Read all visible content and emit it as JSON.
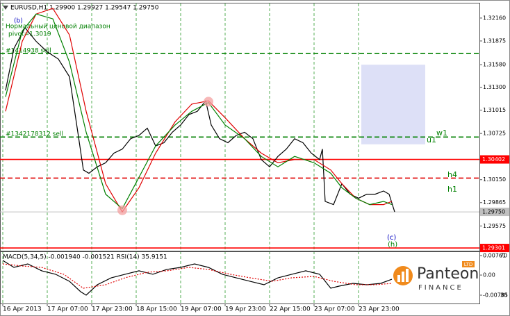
{
  "chart_data": [
    {
      "type": "line",
      "title": "EURUSD,H1  1.29900 1.29927 1.29547 1.29750",
      "xlim": [
        -1,
        171.5
      ],
      "xticks": [
        {
          "value": 0,
          "label": "16 Apr 2013"
        },
        {
          "value": 16,
          "label": "17 Apr 07:00"
        },
        {
          "value": 32,
          "label": "17 Apr 23:00"
        },
        {
          "value": 48,
          "label": "18 Apr 15:00"
        },
        {
          "value": 64,
          "label": "19 Apr 07:00"
        },
        {
          "value": 80,
          "label": "19 Apr 23:00"
        },
        {
          "value": 96,
          "label": "22 Apr 15:00"
        },
        {
          "value": 112,
          "label": "23 Apr 07:00"
        },
        {
          "value": 128,
          "label": "23 Apr 23:00"
        }
      ],
      "ylim": [
        1.29267,
        1.32341
      ],
      "yticks": [
        {
          "value": 1.3216,
          "label": "1.32160"
        },
        1.31875,
        {
          "value": 1.3158,
          "label": "1.31580"
        },
        {
          "value": 1.313,
          "label": "1.31300"
        },
        1.31015,
        1.30725,
        {
          "value": 1.3015,
          "label": "1.30150"
        },
        1.29865,
        1.29575
      ],
      "series": [
        {
          "color": "#000000",
          "x": [
            1,
            4,
            8,
            12,
            16,
            20,
            24,
            27,
            29,
            31,
            34,
            37,
            40,
            43,
            46,
            49,
            52,
            55,
            58,
            61,
            64,
            67,
            70,
            73,
            75,
            78,
            81,
            84,
            87,
            90,
            93,
            96,
            99,
            102,
            105,
            108,
            111,
            114,
            115,
            116,
            119,
            122,
            125,
            128,
            131,
            134,
            137,
            139,
            141
          ],
          "values": [
            1.3126,
            1.3178,
            1.3204,
            1.3187,
            1.3174,
            1.3165,
            1.3143,
            1.3074,
            1.3027,
            1.3023,
            1.3031,
            1.3036,
            1.3048,
            1.3053,
            1.3066,
            1.307,
            1.3079,
            1.3057,
            1.3061,
            1.3074,
            1.3083,
            1.3096,
            1.31,
            1.3113,
            1.3083,
            1.3066,
            1.3061,
            1.307,
            1.3074,
            1.3066,
            1.304,
            1.3031,
            1.3044,
            1.3053,
            1.3066,
            1.3061,
            1.3048,
            1.304,
            1.3053,
            1.2988,
            1.2984,
            1.301,
            1.2997,
            1.2992,
            1.2997,
            1.2997,
            1.3001,
            1.2997,
            1.2975
          ]
        },
        {
          "color": "#e00000",
          "x": [
            1,
            7,
            12,
            18,
            24,
            30,
            37,
            43,
            49,
            55,
            62,
            68,
            74,
            80,
            87,
            93,
            99,
            105,
            112,
            118,
            122,
            127,
            132,
            137,
            140
          ],
          "values": [
            1.31,
            1.3187,
            1.3221,
            1.3228,
            1.3195,
            1.31,
            1.301,
            1.2975,
            1.3005,
            1.3048,
            1.3087,
            1.3109,
            1.3113,
            1.3092,
            1.3066,
            1.3048,
            1.3036,
            1.304,
            1.304,
            1.3027,
            1.301,
            1.2992,
            1.2984,
            1.2984,
            1.2988
          ]
        },
        {
          "color": "#008000",
          "x": [
            1,
            7,
            12,
            18,
            24,
            30,
            37,
            43,
            49,
            55,
            62,
            68,
            74,
            80,
            87,
            93,
            99,
            105,
            112,
            118,
            122,
            127,
            132,
            137,
            140
          ],
          "values": [
            1.3118,
            1.32,
            1.3221,
            1.3215,
            1.3161,
            1.3074,
            1.2997,
            1.2979,
            1.3018,
            1.3057,
            1.3083,
            1.31,
            1.3111,
            1.3083,
            1.3066,
            1.3044,
            1.3031,
            1.3044,
            1.3036,
            1.3023,
            1.3005,
            1.2992,
            1.2984,
            1.2988,
            1.2984
          ]
        }
      ],
      "levels": [
        {
          "value": 1.30402,
          "label": "1.30402",
          "color": "#ff0000",
          "style": "solid"
        },
        {
          "value": 1.29301,
          "label": "1.29301",
          "color": "#ff0000",
          "style": "solid"
        },
        {
          "value": 1.2975,
          "label": "1.29750",
          "color": "#c0c0c0",
          "style": "solid"
        },
        {
          "value": 1.3017,
          "color": "#e00000",
          "style": "dashed"
        },
        {
          "value": 1.3172,
          "color": "#008000",
          "style": "dashed"
        },
        {
          "value": 1.3068,
          "color": "#008000",
          "style": "dashed"
        }
      ],
      "zone": {
        "xlim": [
          129,
          152
        ],
        "ylim": [
          1.3059,
          1.3158
        ],
        "color": "#dde0f7"
      },
      "highlights": [
        {
          "x": 43,
          "y": 1.2977
        },
        {
          "x": 74,
          "y": 1.3112
        }
      ],
      "highlight_color": "#f4a0a0",
      "annotations": [
        "(b)",
        "Нормальный ценовой диапазон",
        "pivot=1.3019",
        "#1414938 sell",
        "#1342178312 sell",
        "w1",
        "u1",
        "h4",
        "h1",
        "(c)",
        "(h)"
      ]
    },
    {
      "type": "line",
      "title": "MACD(5,34,5) -0.001940 -0.001521  RSI(14) 35.9151",
      "xlim": [
        -1,
        171.5
      ],
      "ylim": [
        -0.00785,
        0.00761
      ],
      "yticks": [
        0.00761,
        {
          "value": 0,
          "label": "0.00"
        },
        -0.00785
      ],
      "y2lim": [
        30,
        70
      ],
      "y2ticks": [
        70,
        30
      ],
      "series": [
        {
          "color": "#000000",
          "axis": "y2",
          "style": "solid",
          "x": [
            0,
            4,
            9,
            14,
            19,
            24,
            28,
            30,
            34,
            39,
            44,
            49,
            54,
            59,
            64,
            69,
            74,
            79,
            84,
            89,
            94,
            99,
            104,
            109,
            114,
            118,
            121,
            126,
            131,
            136,
            140
          ],
          "values": [
            65.1,
            58.1,
            61.6,
            54.6,
            51.1,
            44.0,
            33.5,
            30,
            40.5,
            47.5,
            51.1,
            54.6,
            51.1,
            56.0,
            58.1,
            61.6,
            58.1,
            51.1,
            47.5,
            44.0,
            40.5,
            47.5,
            51.1,
            54.6,
            51.1,
            37.0,
            39.1,
            41.9,
            40.5,
            41.9,
            46.1
          ]
        },
        {
          "color": "#e00000",
          "style": "dotted",
          "x": [
            0,
            7,
            14,
            22,
            29,
            37,
            44,
            52,
            59,
            67,
            74,
            82,
            89,
            97,
            104,
            112,
            119,
            127,
            134,
            140
          ],
          "values": [
            0.00435,
            0.00354,
            0.003,
            0.00029,
            -0.00514,
            -0.00378,
            -0.00107,
            0.0011,
            0.00164,
            0.003,
            0.00218,
            0.00029,
            -0.00107,
            -0.00243,
            -0.00107,
            -0.00053,
            -0.00243,
            -0.00378,
            -0.00378,
            -0.00324
          ]
        }
      ]
    }
  ],
  "logo": {
    "name": "Panteon",
    "sub": "FINANCE",
    "badge": "LTD"
  }
}
